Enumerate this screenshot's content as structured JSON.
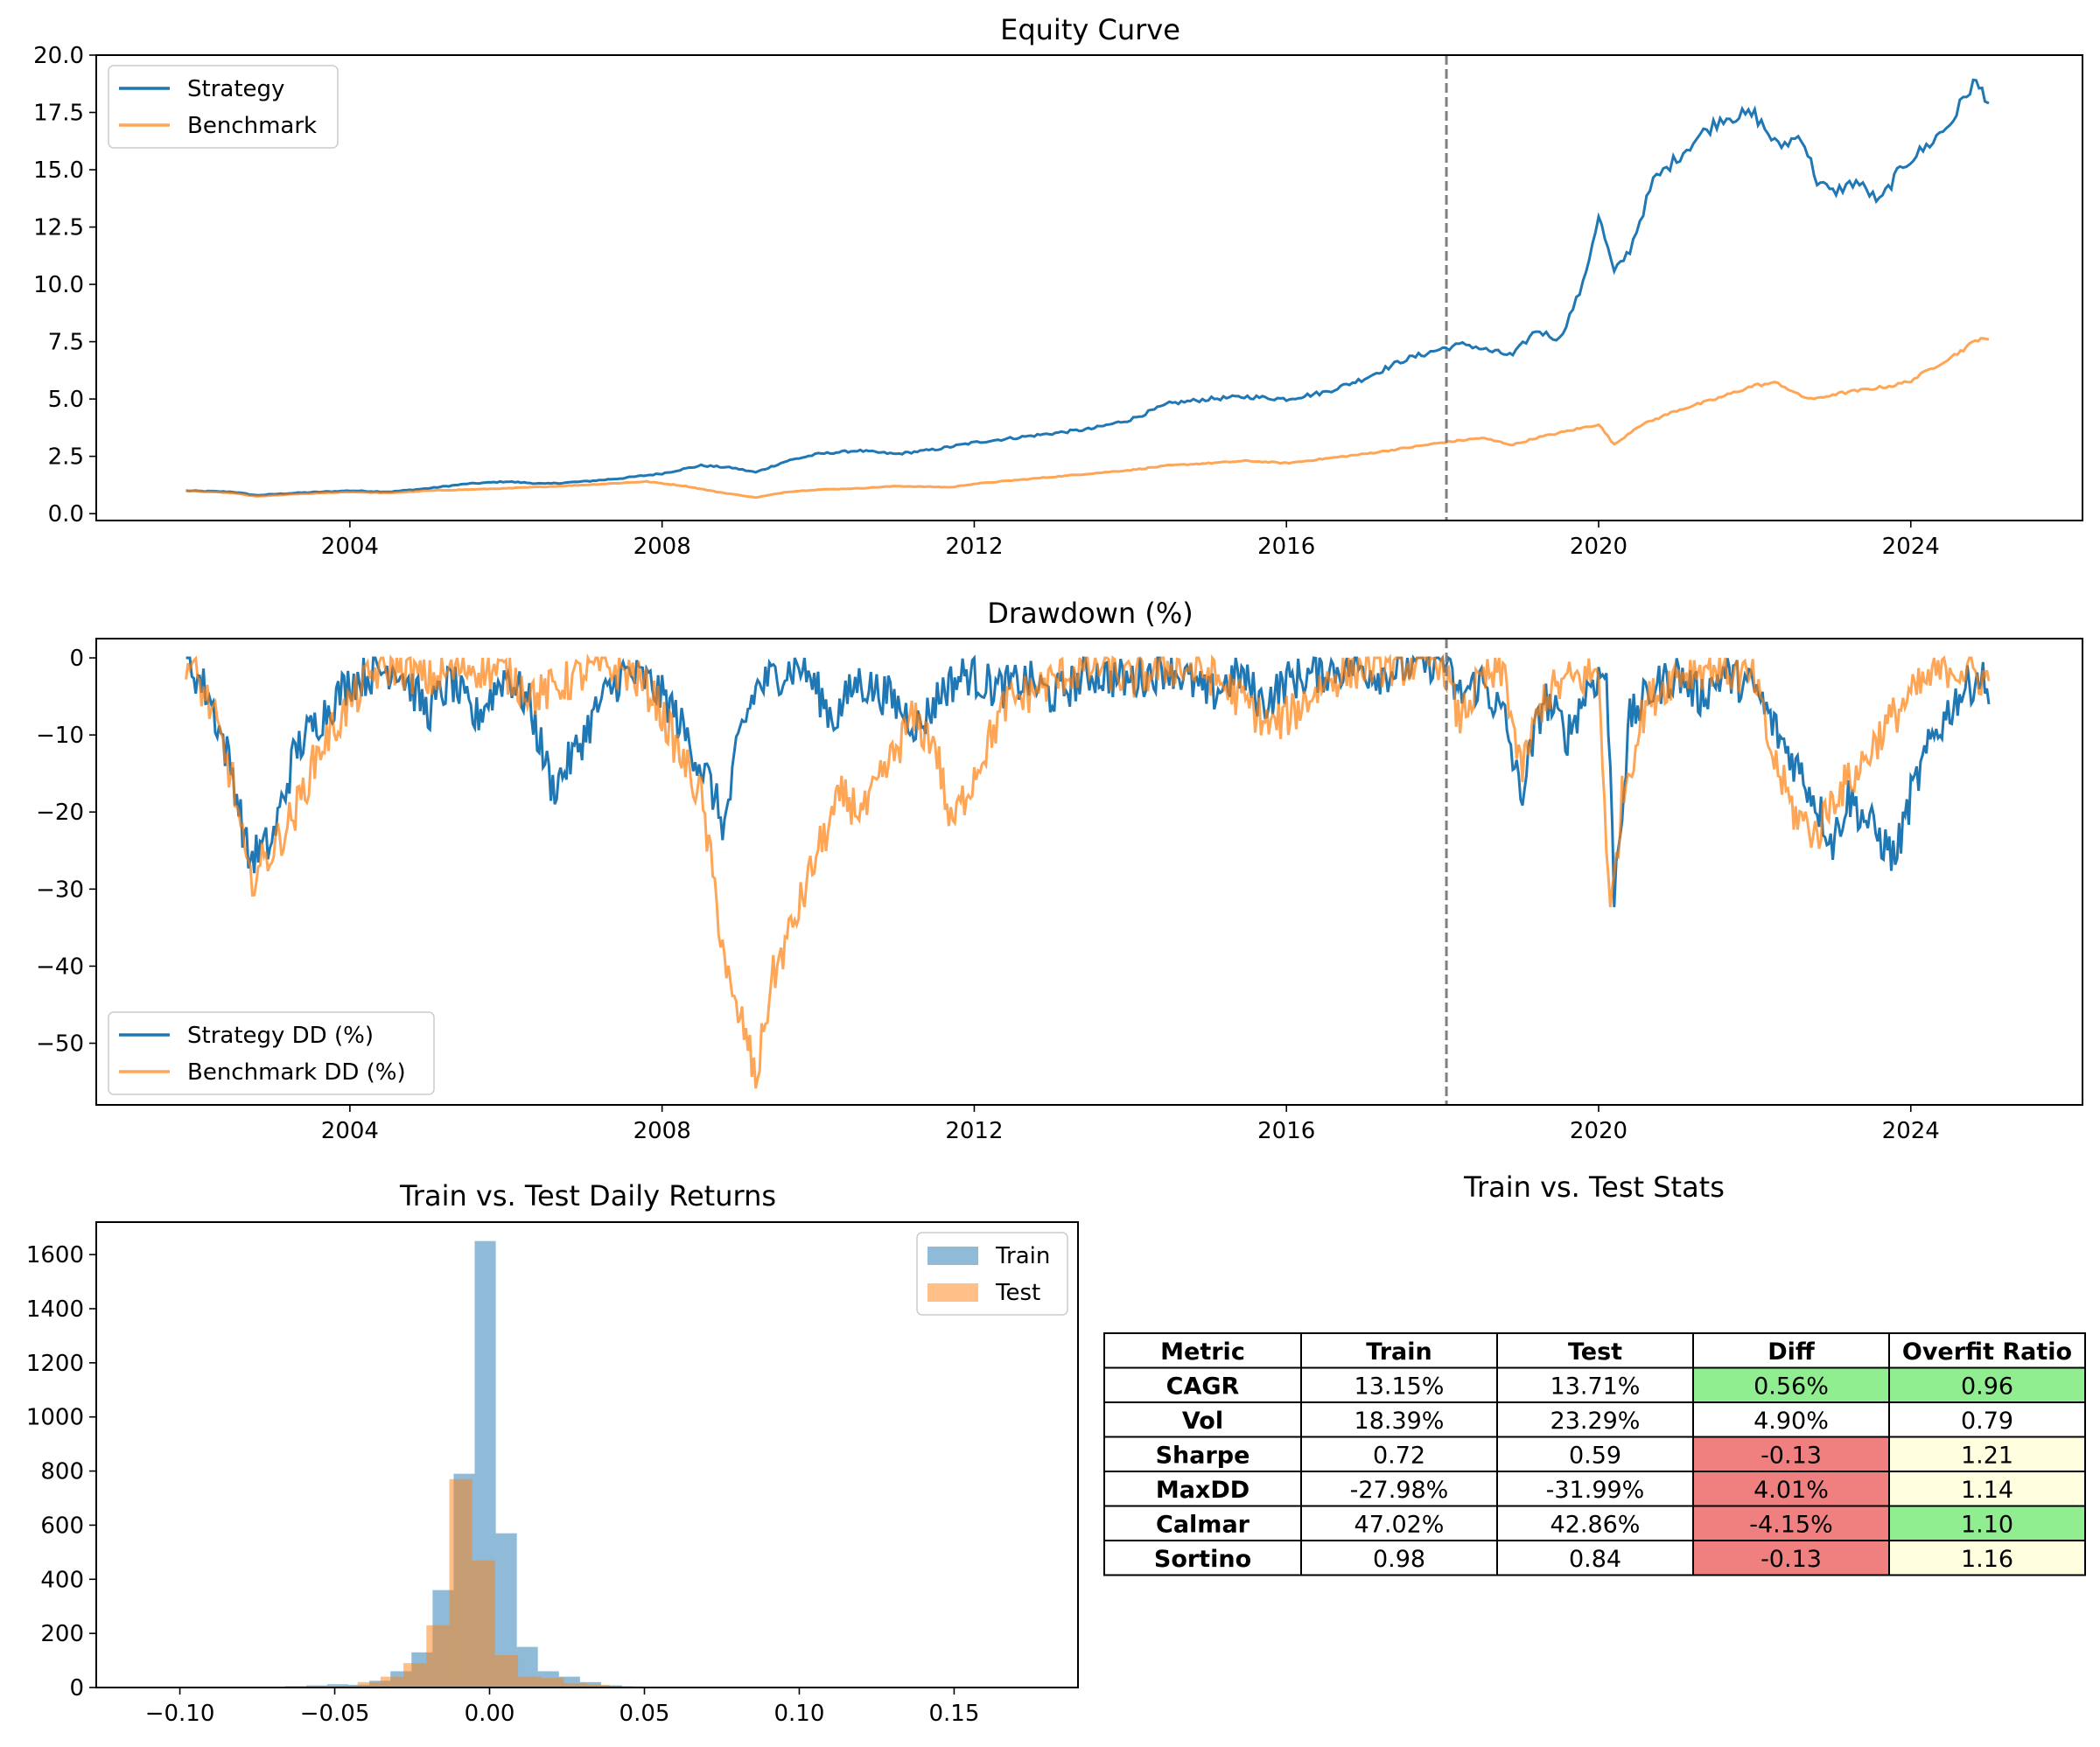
{
  "chart_data": [
    {
      "type": "line",
      "title": "Equity Curve",
      "xlabel": "",
      "ylabel": "",
      "xlim": [
        2000.75,
        2026.2
      ],
      "ylim": [
        -0.3,
        20.0
      ],
      "grid": false,
      "legend_position": "upper-left",
      "x_ticks": [
        2004,
        2008,
        2012,
        2016,
        2020,
        2024
      ],
      "x_tick_labels": [
        "2004",
        "2008",
        "2012",
        "2016",
        "2020",
        "2024"
      ],
      "y_ticks": [
        0.0,
        2.5,
        5.0,
        7.5,
        10.0,
        12.5,
        15.0,
        17.5,
        20.0
      ],
      "y_tick_labels": [
        "0.0",
        "2.5",
        "5.0",
        "7.5",
        "10.0",
        "12.5",
        "15.0",
        "17.5",
        "20.0"
      ],
      "split_line_x": 2018.05,
      "series": [
        {
          "name": "Strategy",
          "color": "#1f77b4",
          "x": [
            2001.9,
            2002.5,
            2002.8,
            2003.3,
            2004.0,
            2004.5,
            2005.0,
            2005.5,
            2006.0,
            2006.5,
            2007.0,
            2007.5,
            2008.0,
            2008.5,
            2008.9,
            2009.2,
            2009.6,
            2010.0,
            2010.5,
            2011.0,
            2011.5,
            2012.0,
            2012.5,
            2013.0,
            2013.5,
            2014.0,
            2014.5,
            2015.0,
            2015.5,
            2016.0,
            2016.5,
            2017.0,
            2017.5,
            2018.0,
            2018.3,
            2018.6,
            2018.9,
            2019.2,
            2019.5,
            2019.8,
            2020.0,
            2020.2,
            2020.4,
            2020.7,
            2021.0,
            2021.3,
            2021.6,
            2022.0,
            2022.3,
            2022.6,
            2022.8,
            2023.0,
            2023.3,
            2023.6,
            2023.9,
            2024.2,
            2024.5,
            2024.8,
            2024.95,
            2025.0
          ],
          "values": [
            1.0,
            0.95,
            0.8,
            0.9,
            1.0,
            0.95,
            1.1,
            1.3,
            1.4,
            1.3,
            1.4,
            1.55,
            1.75,
            2.1,
            2.0,
            1.8,
            2.3,
            2.6,
            2.75,
            2.6,
            2.8,
            3.1,
            3.3,
            3.5,
            3.7,
            4.1,
            4.8,
            5.0,
            5.1,
            5.0,
            5.3,
            5.9,
            6.7,
            7.2,
            7.4,
            7.1,
            6.9,
            8.0,
            7.6,
            10.0,
            13.0,
            10.5,
            11.5,
            14.5,
            15.5,
            16.5,
            17.3,
            17.4,
            16.0,
            16.5,
            14.5,
            14.0,
            14.5,
            13.6,
            15.2,
            16.0,
            17.0,
            18.8,
            18.3,
            17.9
          ]
        },
        {
          "name": "Benchmark",
          "color": "#ff7f0e",
          "x": [
            2001.9,
            2002.5,
            2002.8,
            2003.3,
            2004.0,
            2004.5,
            2005.0,
            2006.0,
            2007.0,
            2007.8,
            2008.3,
            2008.7,
            2009.0,
            2009.2,
            2009.6,
            2010.0,
            2010.5,
            2011.0,
            2011.7,
            2012.0,
            2013.0,
            2014.0,
            2014.5,
            2015.0,
            2015.5,
            2016.0,
            2016.5,
            2017.0,
            2017.5,
            2018.0,
            2018.5,
            2018.9,
            2019.2,
            2019.6,
            2020.0,
            2020.2,
            2020.5,
            2021.0,
            2021.5,
            2022.0,
            2022.3,
            2022.6,
            2022.8,
            2023.0,
            2023.4,
            2023.8,
            2024.0,
            2024.3,
            2024.6,
            2024.9,
            2025.0
          ],
          "values": [
            1.0,
            0.9,
            0.75,
            0.85,
            0.95,
            0.9,
            1.0,
            1.1,
            1.25,
            1.4,
            1.2,
            0.95,
            0.8,
            0.7,
            0.95,
            1.05,
            1.1,
            1.2,
            1.15,
            1.3,
            1.6,
            1.9,
            2.1,
            2.2,
            2.3,
            2.2,
            2.4,
            2.6,
            2.85,
            3.1,
            3.3,
            3.0,
            3.3,
            3.6,
            3.9,
            3.0,
            3.8,
            4.5,
            5.0,
            5.6,
            5.7,
            5.1,
            5.0,
            5.2,
            5.4,
            5.6,
            5.8,
            6.4,
            7.0,
            7.7,
            7.6
          ]
        }
      ]
    },
    {
      "type": "line",
      "title": "Drawdown (%)",
      "xlabel": "",
      "ylabel": "",
      "xlim": [
        2000.75,
        2026.2
      ],
      "ylim": [
        -58,
        2.5
      ],
      "grid": false,
      "legend_position": "lower-left",
      "x_ticks": [
        2004,
        2008,
        2012,
        2016,
        2020,
        2024
      ],
      "x_tick_labels": [
        "2004",
        "2008",
        "2012",
        "2016",
        "2020",
        "2024"
      ],
      "y_ticks": [
        0,
        -10,
        -20,
        -30,
        -40,
        -50
      ],
      "y_tick_labels": [
        "0",
        "−10",
        "−20",
        "−30",
        "−40",
        "−50"
      ],
      "split_line_x": 2018.05,
      "series": [
        {
          "name": "Strategy DD (%)",
          "color": "#1f77b4",
          "x": [
            2001.9,
            2002.2,
            2002.5,
            2002.7,
            2003.0,
            2003.3,
            2003.6,
            2004.0,
            2004.3,
            2004.6,
            2005.0,
            2005.3,
            2005.6,
            2006.0,
            2006.3,
            2006.6,
            2006.9,
            2007.2,
            2007.5,
            2007.8,
            2008.1,
            2008.4,
            2008.6,
            2008.8,
            2009.0,
            2009.2,
            2009.5,
            2009.8,
            2010.2,
            2010.5,
            2010.9,
            2011.3,
            2011.6,
            2011.9,
            2012.3,
            2012.7,
            2013.0,
            2013.5,
            2014.0,
            2014.5,
            2015.0,
            2015.4,
            2015.7,
            2016.0,
            2016.4,
            2016.8,
            2017.2,
            2017.6,
            2018.0,
            2018.2,
            2018.5,
            2018.8,
            2019.0,
            2019.3,
            2019.6,
            2019.9,
            2020.1,
            2020.2,
            2020.4,
            2020.7,
            2021.0,
            2021.3,
            2021.6,
            2022.0,
            2022.3,
            2022.6,
            2022.8,
            2023.0,
            2023.2,
            2023.5,
            2023.8,
            2024.0,
            2024.3,
            2024.6,
            2024.9,
            2025.0
          ],
          "values": [
            0,
            -5,
            -15,
            -26,
            -24,
            -12,
            -8,
            -3,
            -2,
            -1,
            -7,
            -3,
            -8,
            -2,
            -6,
            -17,
            -12,
            -6,
            -2,
            -3,
            -6,
            -12,
            -16,
            -22,
            -10,
            -4,
            -2,
            -1,
            -8,
            -3,
            -5,
            -9,
            -4,
            -2,
            -4,
            -3,
            -5,
            -2,
            -3,
            -1,
            -5,
            -2,
            -6,
            -3,
            -2,
            -1,
            -2,
            -1,
            0,
            -5,
            -3,
            -8,
            -18,
            -5,
            -10,
            -3,
            -2,
            -30,
            -8,
            -4,
            -2,
            -5,
            -2,
            -4,
            -10,
            -15,
            -19,
            -24,
            -18,
            -22,
            -26,
            -18,
            -10,
            -5,
            -2,
            -6
          ]
        },
        {
          "name": "Benchmark DD (%)",
          "color": "#ff7f0e",
          "x": [
            2001.9,
            2002.2,
            2002.5,
            2002.7,
            2003.0,
            2003.3,
            2003.6,
            2004.0,
            2004.3,
            2004.6,
            2005.0,
            2005.5,
            2006.0,
            2006.4,
            2006.8,
            2007.2,
            2007.6,
            2007.9,
            2008.2,
            2008.5,
            2008.7,
            2008.9,
            2009.05,
            2009.2,
            2009.4,
            2009.7,
            2010.0,
            2010.3,
            2010.6,
            2010.9,
            2011.2,
            2011.5,
            2011.7,
            2012.0,
            2012.4,
            2012.8,
            2013.2,
            2013.6,
            2014.0,
            2014.5,
            2015.0,
            2015.5,
            2015.8,
            2016.1,
            2016.5,
            2017.0,
            2017.5,
            2018.0,
            2018.2,
            2018.5,
            2018.8,
            2019.0,
            2019.3,
            2019.6,
            2020.0,
            2020.15,
            2020.3,
            2020.6,
            2021.0,
            2021.5,
            2022.0,
            2022.2,
            2022.5,
            2022.8,
            2023.0,
            2023.3,
            2023.6,
            2023.9,
            2024.2,
            2024.5,
            2024.8,
            2025.0
          ],
          "values": [
            0,
            -6,
            -16,
            -29,
            -25,
            -20,
            -12,
            -6,
            -2,
            -1,
            -3,
            -1,
            -2,
            -5,
            -3,
            -1,
            -2,
            -5,
            -12,
            -18,
            -32,
            -45,
            -48,
            -55,
            -42,
            -34,
            -25,
            -18,
            -20,
            -14,
            -8,
            -11,
            -22,
            -15,
            -6,
            -4,
            -2,
            -1,
            -3,
            -1,
            -2,
            -6,
            -9,
            -7,
            -3,
            -1,
            -1,
            0,
            -8,
            -3,
            -2,
            -15,
            -5,
            -3,
            -2,
            -34,
            -18,
            -6,
            -2,
            -1,
            -3,
            -12,
            -20,
            -23,
            -18,
            -15,
            -10,
            -6,
            -3,
            -1,
            -2,
            -3
          ]
        }
      ]
    },
    {
      "type": "bar",
      "title": "Train vs. Test Daily Returns",
      "xlabel": "",
      "ylabel": "",
      "xlim": [
        -0.127,
        0.19
      ],
      "ylim": [
        0,
        1720
      ],
      "grid": false,
      "legend_position": "upper-right",
      "x_ticks": [
        -0.1,
        -0.05,
        0.0,
        0.05,
        0.1,
        0.15
      ],
      "x_tick_labels": [
        "−0.10",
        "−0.05",
        "0.00",
        "0.05",
        "0.10",
        "0.15"
      ],
      "y_ticks": [
        0,
        200,
        400,
        600,
        800,
        1000,
        1200,
        1400,
        1600
      ],
      "y_tick_labels": [
        "0",
        "200",
        "400",
        "600",
        "800",
        "1000",
        "1200",
        "1400",
        "1600"
      ],
      "series": [
        {
          "name": "Train",
          "color": "#1f77b4",
          "opacity": 0.5,
          "bin_edges": [
            -0.1,
            -0.0932,
            -0.0864,
            -0.0796,
            -0.0728,
            -0.066,
            -0.0592,
            -0.0524,
            -0.0456,
            -0.0388,
            -0.032,
            -0.0252,
            -0.0184,
            -0.0116,
            -0.0048,
            0.002,
            0.0088,
            0.0156,
            0.0224,
            0.0292,
            0.036,
            0.0428,
            0.0496,
            0.0564,
            0.0632
          ],
          "values": [
            1,
            1,
            1,
            2,
            3,
            5,
            8,
            12,
            10,
            25,
            60,
            130,
            360,
            790,
            1650,
            570,
            150,
            60,
            40,
            20,
            8,
            4,
            2,
            1
          ]
        },
        {
          "name": "Test",
          "color": "#ff7f0e",
          "opacity": 0.5,
          "bin_edges": [
            -0.05,
            -0.0426,
            -0.0352,
            -0.0278,
            -0.0204,
            -0.013,
            -0.0056,
            0.0018,
            0.0092,
            0.0166,
            0.024,
            0.0314,
            0.0388,
            0.0462,
            0.0536,
            0.061
          ],
          "values": [
            5,
            20,
            40,
            90,
            230,
            770,
            470,
            120,
            40,
            35,
            15,
            10,
            5,
            2,
            1
          ]
        }
      ]
    }
  ],
  "stats_table": {
    "title": "Train vs. Test Stats",
    "headers": [
      "Metric",
      "Train",
      "Test",
      "Diff",
      "Overfit Ratio"
    ],
    "rows": [
      {
        "cells": [
          "CAGR",
          "13.15%",
          "13.71%",
          "0.56%",
          "0.96"
        ],
        "diff_color": "#90ee90",
        "ratio_color": "#90ee90"
      },
      {
        "cells": [
          "Vol",
          "18.39%",
          "23.29%",
          "4.90%",
          "0.79"
        ],
        "diff_color": "#ffffff",
        "ratio_color": "#ffffff"
      },
      {
        "cells": [
          "Sharpe",
          "0.72",
          "0.59",
          "-0.13",
          "1.21"
        ],
        "diff_color": "#f08080",
        "ratio_color": "#ffffe0"
      },
      {
        "cells": [
          "MaxDD",
          "-27.98%",
          "-31.99%",
          "4.01%",
          "1.14"
        ],
        "diff_color": "#f08080",
        "ratio_color": "#ffffe0"
      },
      {
        "cells": [
          "Calmar",
          "47.02%",
          "42.86%",
          "-4.15%",
          "1.10"
        ],
        "diff_color": "#f08080",
        "ratio_color": "#90ee90"
      },
      {
        "cells": [
          "Sortino",
          "0.98",
          "0.84",
          "-0.13",
          "1.16"
        ],
        "diff_color": "#f08080",
        "ratio_color": "#ffffe0"
      }
    ]
  }
}
